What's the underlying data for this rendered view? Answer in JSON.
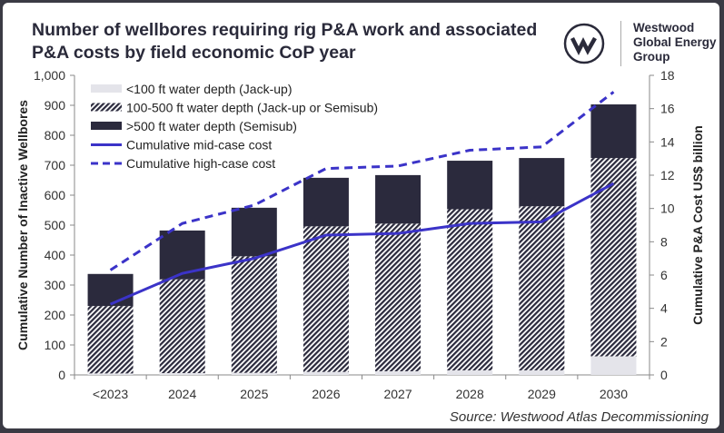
{
  "header": {
    "title": "Number of wellbores requiring rig P&A work and associated P&A costs by field economic CoP year"
  },
  "logo": {
    "text": "Westwood Global Energy Group",
    "lines": [
      "Westwood",
      "Global Energy",
      "Group"
    ]
  },
  "source": "Source: Westwood Atlas Decommissioning",
  "colors": {
    "shallow": "#e4e4ea",
    "hatch": "#2b2a3d",
    "deep": "#2b2a3d",
    "line": "#3b33c8"
  },
  "chart_data": {
    "type": "bar",
    "stacked": true,
    "categories": [
      "<2023",
      "2024",
      "2025",
      "2026",
      "2027",
      "2028",
      "2029",
      "2030"
    ],
    "ylabel": "Cumulative Number of Inactive Wellbores",
    "y2label": "Cumulative P&A Cost US$ billion",
    "ylim": [
      0,
      1000
    ],
    "y2lim": [
      0,
      18
    ],
    "yticks": [
      "0",
      "100",
      "200",
      "300",
      "400",
      "500",
      "600",
      "700",
      "800",
      "900",
      "1,000"
    ],
    "y2ticks": [
      "0",
      "2",
      "4",
      "6",
      "8",
      "10",
      "12",
      "14",
      "16",
      "18"
    ],
    "legend_position": "top-left",
    "series": [
      {
        "name": "<100 ft water depth (Jack-up)",
        "kind": "bar",
        "values": [
          5,
          6,
          7,
          10,
          12,
          15,
          15,
          62
        ]
      },
      {
        "name": "100-500 ft water depth (Jack-up or Semisub)",
        "kind": "bar-hatched",
        "values": [
          225,
          313,
          389,
          486,
          493,
          538,
          548,
          662
        ]
      },
      {
        "name": ">500 ft water depth (Semisub)",
        "kind": "bar",
        "values": [
          107,
          163,
          162,
          162,
          162,
          162,
          161,
          179
        ]
      },
      {
        "name": "Cumulative mid-case cost",
        "kind": "line",
        "axis": "right",
        "values": [
          4.25,
          6.1,
          7.0,
          8.4,
          8.5,
          9.1,
          9.2,
          11.5
        ]
      },
      {
        "name": "Cumulative high-case cost",
        "kind": "line-dashed",
        "axis": "right",
        "values": [
          6.3,
          9.1,
          10.2,
          12.4,
          12.55,
          13.5,
          13.7,
          17.0
        ]
      }
    ]
  }
}
